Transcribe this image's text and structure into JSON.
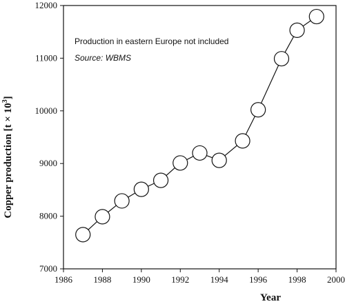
{
  "chart_data": {
    "type": "line",
    "xlabel": "Year",
    "ylabel_main": "Copper production [t × 10",
    "ylabel_sup": "3",
    "ylabel_close": "]",
    "xlim": [
      1986,
      2000
    ],
    "ylim": [
      7000,
      12000
    ],
    "xticks": [
      1986,
      1988,
      1990,
      1992,
      1994,
      1996,
      1998,
      2000
    ],
    "yticks": [
      7000,
      8000,
      9000,
      10000,
      11000,
      12000
    ],
    "annotations": {
      "note": "Production in eastern Europe not included",
      "source": "Source: WBMS"
    },
    "marker": "open-circle",
    "line_color": "#111111",
    "series": [
      {
        "x": [
          1987,
          1988,
          1989,
          1990,
          1991,
          1992,
          1993,
          1994,
          1995.2,
          1996,
          1997.2,
          1998,
          1999
        ],
        "y": [
          7650,
          7990,
          8290,
          8510,
          8680,
          9010,
          9200,
          9060,
          9430,
          10020,
          10990,
          11530,
          11790
        ]
      }
    ]
  }
}
